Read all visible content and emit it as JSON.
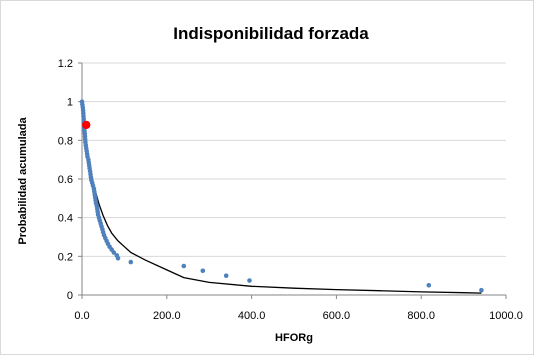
{
  "colors": {
    "points": "#4f81bd",
    "highlight": "#ff0000",
    "curve": "#000000",
    "grid": "#d9d9d9"
  },
  "chart_data": {
    "type": "scatter",
    "title": "Indisponibilidad forzada",
    "xlabel": "HFORg",
    "ylabel": "Probabilidad acumulada",
    "xlim": [
      0,
      1000
    ],
    "ylim": [
      0,
      1.2
    ],
    "x_ticks": [
      0,
      200,
      400,
      600,
      800,
      1000
    ],
    "x_tick_labels": [
      "0.0",
      "200.0",
      "400.0",
      "600.0",
      "800.0",
      "1000.0"
    ],
    "y_ticks": [
      0,
      0.2,
      0.4,
      0.6,
      0.8,
      1,
      1.2
    ],
    "y_tick_labels": [
      "0",
      "0.2",
      "0.4",
      "0.6",
      "0.8",
      "1",
      "1.2"
    ],
    "grid": "horizontal",
    "legend": "none",
    "series": [
      {
        "type": "scatter",
        "color": "#4f81bd",
        "points": [
          [
            0,
            1.0
          ],
          [
            1,
            0.985
          ],
          [
            2,
            0.97
          ],
          [
            2.5,
            0.955
          ],
          [
            3,
            0.94
          ],
          [
            3.5,
            0.925
          ],
          [
            4,
            0.91
          ],
          [
            4.5,
            0.895
          ],
          [
            5,
            0.88
          ],
          [
            5.5,
            0.865
          ],
          [
            6,
            0.85
          ],
          [
            6.5,
            0.835
          ],
          [
            7,
            0.82
          ],
          [
            7.5,
            0.805
          ],
          [
            8,
            0.79
          ],
          [
            9,
            0.775
          ],
          [
            10,
            0.76
          ],
          [
            11,
            0.745
          ],
          [
            12,
            0.73
          ],
          [
            13,
            0.715
          ],
          [
            15,
            0.7
          ],
          [
            16,
            0.685
          ],
          [
            17,
            0.67
          ],
          [
            18,
            0.655
          ],
          [
            19,
            0.64
          ],
          [
            20,
            0.625
          ],
          [
            21,
            0.61
          ],
          [
            22,
            0.595
          ],
          [
            24,
            0.58
          ],
          [
            26,
            0.565
          ],
          [
            28,
            0.55
          ],
          [
            29,
            0.535
          ],
          [
            30,
            0.52
          ],
          [
            31,
            0.505
          ],
          [
            32,
            0.49
          ],
          [
            33,
            0.475
          ],
          [
            35,
            0.46
          ],
          [
            36,
            0.445
          ],
          [
            37,
            0.43
          ],
          [
            38,
            0.415
          ],
          [
            40,
            0.4
          ],
          [
            42,
            0.385
          ],
          [
            44,
            0.37
          ],
          [
            46,
            0.355
          ],
          [
            48,
            0.34
          ],
          [
            50,
            0.325
          ],
          [
            52,
            0.31
          ],
          [
            55,
            0.295
          ],
          [
            58,
            0.28
          ],
          [
            61,
            0.265
          ],
          [
            65,
            0.25
          ],
          [
            70,
            0.235
          ],
          [
            75,
            0.22
          ],
          [
            82,
            0.205
          ],
          [
            85,
            0.19
          ],
          [
            115,
            0.17
          ],
          [
            240,
            0.15
          ],
          [
            285,
            0.125
          ],
          [
            340,
            0.1
          ],
          [
            395,
            0.075
          ],
          [
            818,
            0.05
          ],
          [
            942,
            0.025
          ]
        ]
      },
      {
        "type": "scatter",
        "color": "#ff0000",
        "points": [
          [
            10,
            0.88
          ]
        ]
      },
      {
        "type": "line",
        "color": "#000000",
        "points": [
          [
            0,
            0.98
          ],
          [
            5,
            0.85
          ],
          [
            10,
            0.77
          ],
          [
            20,
            0.65
          ],
          [
            30,
            0.55
          ],
          [
            40,
            0.47
          ],
          [
            50,
            0.41
          ],
          [
            60,
            0.36
          ],
          [
            70,
            0.32
          ],
          [
            85,
            0.28
          ],
          [
            100,
            0.25
          ],
          [
            115,
            0.22
          ],
          [
            150,
            0.18
          ],
          [
            200,
            0.13
          ],
          [
            240,
            0.09
          ],
          [
            300,
            0.065
          ],
          [
            400,
            0.045
          ],
          [
            500,
            0.035
          ],
          [
            600,
            0.028
          ],
          [
            700,
            0.022
          ],
          [
            800,
            0.016
          ],
          [
            900,
            0.012
          ],
          [
            942,
            0.01
          ]
        ]
      }
    ]
  }
}
